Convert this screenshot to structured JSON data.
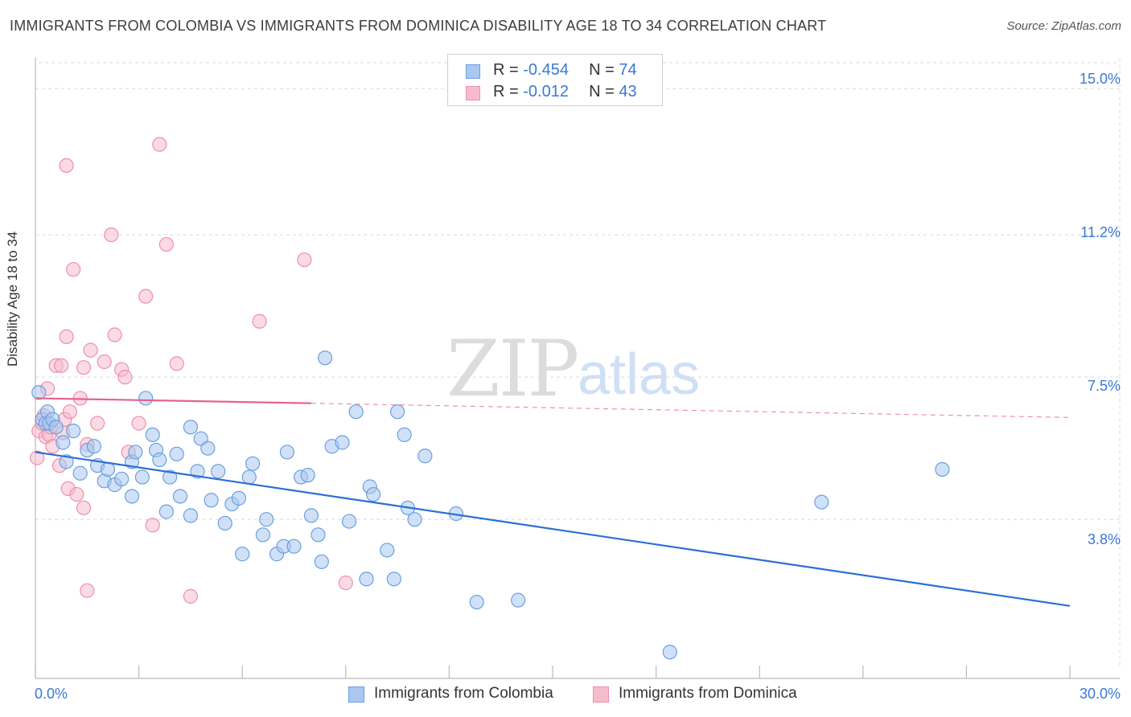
{
  "title": "IMMIGRANTS FROM COLOMBIA VS IMMIGRANTS FROM DOMINICA DISABILITY AGE 18 TO 34 CORRELATION CHART",
  "source": "Source: ZipAtlas.com",
  "colors": {
    "colombia_fill": "#a9c8f0",
    "colombia_stroke": "#6b9fe0",
    "colombia_line": "#2b6fd6",
    "dominica_fill": "#f6bccd",
    "dominica_stroke": "#ee8fab",
    "dominica_line": "#e8608a",
    "tick_text": "#3a78d6",
    "grid": "#d9d9d9"
  },
  "legend": {
    "row1": {
      "r_label": "R = ",
      "r_value": "-0.454",
      "n_label": "N = ",
      "n_value": "74"
    },
    "row2": {
      "r_label": "R = ",
      "r_value": "-0.012",
      "n_label": "N = ",
      "n_value": "43"
    }
  },
  "watermark": {
    "zip": "ZIP",
    "atlas": "atlas"
  },
  "chart_data": {
    "type": "scatter",
    "title": "IMMIGRANTS FROM COLOMBIA VS IMMIGRANTS FROM DOMINICA DISABILITY AGE 18 TO 34 CORRELATION CHART",
    "xlabel": "",
    "ylabel": "Disability Age 18 to 34",
    "xlim": [
      0,
      30
    ],
    "ylim": [
      0,
      15.8
    ],
    "x_tick_labels": [
      "0.0%",
      "30.0%"
    ],
    "y_ticks": [
      3.8,
      7.5,
      11.2,
      15.0
    ],
    "y_tick_labels": [
      "3.8%",
      "7.5%",
      "11.2%",
      "15.0%"
    ],
    "grid": true,
    "series": [
      {
        "name": "Immigrants from Colombia",
        "R": -0.454,
        "N": 74,
        "trend": {
          "x0": 0,
          "y0": 5.55,
          "x1": 30,
          "y1": 1.55,
          "style": "solid"
        },
        "points": [
          [
            0.1,
            7.1
          ],
          [
            0.2,
            6.4
          ],
          [
            0.3,
            6.3
          ],
          [
            0.35,
            6.6
          ],
          [
            0.4,
            6.3
          ],
          [
            0.5,
            6.4
          ],
          [
            0.6,
            6.2
          ],
          [
            0.8,
            5.8
          ],
          [
            0.9,
            5.3
          ],
          [
            1.1,
            6.1
          ],
          [
            1.3,
            5.0
          ],
          [
            1.5,
            5.6
          ],
          [
            1.7,
            5.7
          ],
          [
            1.8,
            5.2
          ],
          [
            2.0,
            4.8
          ],
          [
            2.1,
            5.1
          ],
          [
            2.3,
            4.7
          ],
          [
            2.5,
            4.85
          ],
          [
            2.8,
            5.3
          ],
          [
            2.8,
            4.4
          ],
          [
            2.9,
            5.55
          ],
          [
            3.1,
            4.9
          ],
          [
            3.2,
            6.95
          ],
          [
            3.4,
            6.0
          ],
          [
            3.5,
            5.6
          ],
          [
            3.6,
            5.35
          ],
          [
            3.8,
            4.0
          ],
          [
            3.9,
            4.9
          ],
          [
            4.1,
            5.5
          ],
          [
            4.2,
            4.4
          ],
          [
            4.5,
            6.2
          ],
          [
            4.5,
            3.9
          ],
          [
            4.7,
            5.05
          ],
          [
            4.8,
            5.9
          ],
          [
            5.0,
            5.65
          ],
          [
            5.1,
            4.3
          ],
          [
            5.3,
            5.05
          ],
          [
            5.5,
            3.7
          ],
          [
            5.7,
            4.2
          ],
          [
            5.9,
            4.35
          ],
          [
            6.0,
            2.9
          ],
          [
            6.2,
            4.9
          ],
          [
            6.3,
            5.25
          ],
          [
            6.6,
            3.4
          ],
          [
            6.7,
            3.8
          ],
          [
            7.0,
            2.9
          ],
          [
            7.2,
            3.1
          ],
          [
            7.3,
            5.55
          ],
          [
            7.5,
            3.1
          ],
          [
            7.7,
            4.9
          ],
          [
            7.9,
            4.95
          ],
          [
            8.0,
            3.9
          ],
          [
            8.2,
            3.4
          ],
          [
            8.3,
            2.7
          ],
          [
            8.4,
            8.0
          ],
          [
            8.6,
            5.7
          ],
          [
            8.9,
            5.8
          ],
          [
            9.1,
            3.75
          ],
          [
            9.3,
            6.6
          ],
          [
            9.6,
            2.25
          ],
          [
            9.7,
            4.65
          ],
          [
            9.8,
            4.45
          ],
          [
            10.2,
            3.0
          ],
          [
            10.4,
            2.25
          ],
          [
            10.5,
            6.6
          ],
          [
            10.7,
            6.0
          ],
          [
            10.8,
            4.1
          ],
          [
            11.0,
            3.8
          ],
          [
            11.3,
            5.45
          ],
          [
            12.2,
            3.95
          ],
          [
            12.8,
            1.65
          ],
          [
            14.0,
            1.7
          ],
          [
            18.4,
            0.35
          ],
          [
            22.8,
            4.25
          ],
          [
            26.3,
            5.1
          ]
        ]
      },
      {
        "name": "Immigrants from Dominica",
        "R": -0.012,
        "N": 43,
        "trend": {
          "x0": 0,
          "y0": 6.95,
          "x1": 8.0,
          "y1": 6.82,
          "x_dash_end": 30,
          "y_dash_end": 6.45,
          "style": "solid-then-dashed"
        },
        "points": [
          [
            0.05,
            5.4
          ],
          [
            0.1,
            6.1
          ],
          [
            0.2,
            6.3
          ],
          [
            0.25,
            6.5
          ],
          [
            0.3,
            5.95
          ],
          [
            0.35,
            7.2
          ],
          [
            0.4,
            6.0
          ],
          [
            0.45,
            6.2
          ],
          [
            0.5,
            5.7
          ],
          [
            0.6,
            7.8
          ],
          [
            0.7,
            5.2
          ],
          [
            0.75,
            7.8
          ],
          [
            0.8,
            6.05
          ],
          [
            0.85,
            6.4
          ],
          [
            0.9,
            13.0
          ],
          [
            0.9,
            8.55
          ],
          [
            0.95,
            4.6
          ],
          [
            1.0,
            6.6
          ],
          [
            1.1,
            10.3
          ],
          [
            1.2,
            4.45
          ],
          [
            1.3,
            6.95
          ],
          [
            1.4,
            7.75
          ],
          [
            1.5,
            5.75
          ],
          [
            1.6,
            8.2
          ],
          [
            1.8,
            6.3
          ],
          [
            1.5,
            1.95
          ],
          [
            1.4,
            4.1
          ],
          [
            2.0,
            7.9
          ],
          [
            2.2,
            11.2
          ],
          [
            2.3,
            8.6
          ],
          [
            2.5,
            7.7
          ],
          [
            2.6,
            7.5
          ],
          [
            2.7,
            5.55
          ],
          [
            3.0,
            6.3
          ],
          [
            3.2,
            9.6
          ],
          [
            3.4,
            3.65
          ],
          [
            3.6,
            13.55
          ],
          [
            3.8,
            10.95
          ],
          [
            4.1,
            7.85
          ],
          [
            4.5,
            1.8
          ],
          [
            6.5,
            8.95
          ],
          [
            7.8,
            10.55
          ],
          [
            9.0,
            2.15
          ]
        ]
      }
    ]
  },
  "bottom_legend": {
    "colombia_label": "Immigrants from Colombia",
    "dominica_label": "Immigrants from Dominica"
  }
}
